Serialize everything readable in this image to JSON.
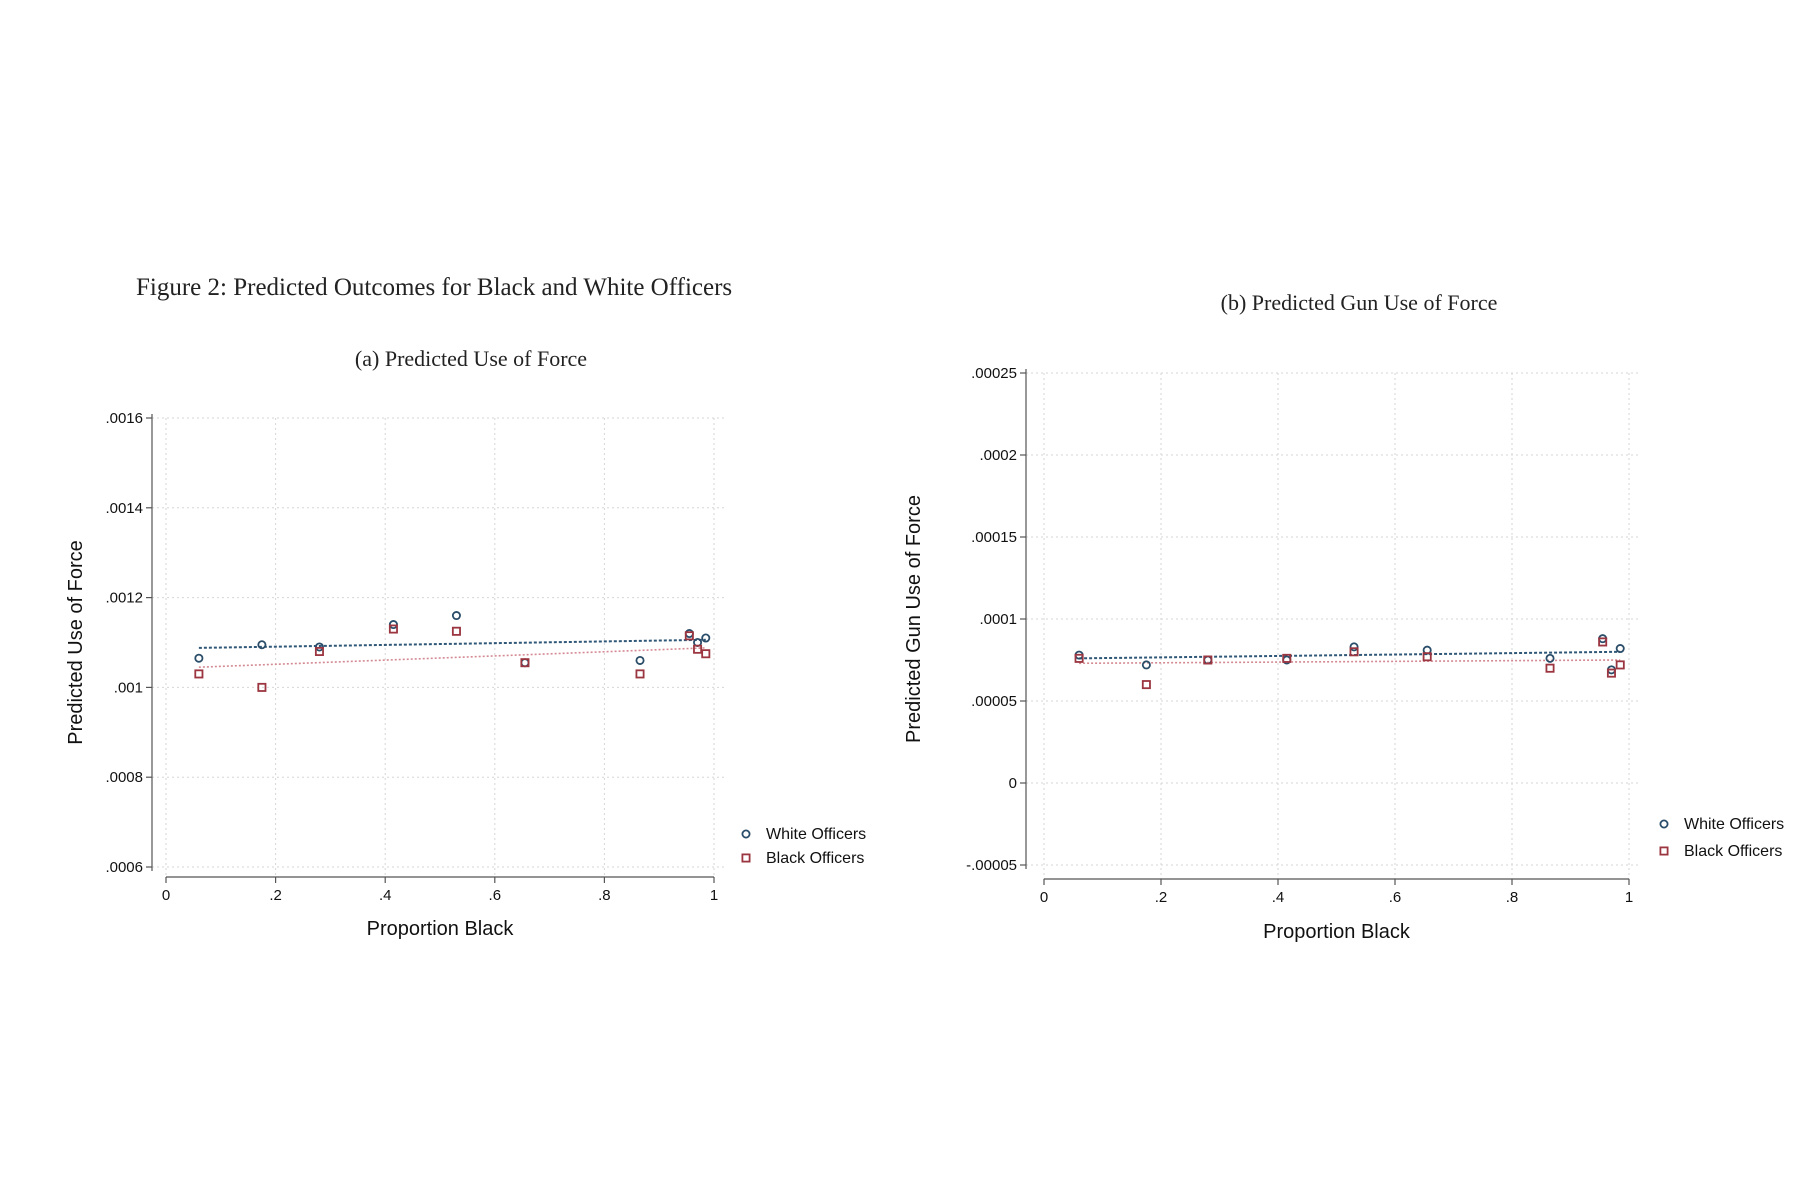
{
  "figure_title": "Figure 2: Predicted Outcomes for Black and White Officers",
  "colors": {
    "white_officers": "#2a4d69",
    "black_officers": "#9b3540",
    "white_fit": "#2f5777",
    "black_fit": "#d48a93",
    "grid": "#d6d6d6",
    "axis": "#555555"
  },
  "chart_data": [
    {
      "type": "scatter",
      "title": "(a) Predicted Use of Force",
      "xlabel": "Proportion Black",
      "ylabel": "Predicted Use of Force",
      "xlim": [
        0,
        1
      ],
      "ylim": [
        0.0006,
        0.0016
      ],
      "x_ticks": [
        0,
        0.2,
        0.4,
        0.6,
        0.8,
        1
      ],
      "x_tick_labels": [
        "0",
        ".2",
        ".4",
        ".6",
        ".8",
        "1"
      ],
      "y_ticks": [
        0.0006,
        0.0008,
        0.001,
        0.0012,
        0.0014,
        0.0016
      ],
      "y_tick_labels": [
        ".0006",
        ".0008",
        ".001",
        ".0012",
        ".0014",
        ".0016"
      ],
      "grid": true,
      "legend_position": "right",
      "series": [
        {
          "name": "White Officers",
          "marker": "circle",
          "x": [
            0.06,
            0.175,
            0.28,
            0.415,
            0.53,
            0.655,
            0.865,
            0.955,
            0.97,
            0.985
          ],
          "y": [
            0.001065,
            0.001095,
            0.00109,
            0.00114,
            0.00116,
            0.001055,
            0.00106,
            0.00112,
            0.0011,
            0.00111
          ],
          "fit": [
            0.001088,
            0.001106
          ]
        },
        {
          "name": "Black Officers",
          "marker": "square",
          "x": [
            0.06,
            0.175,
            0.28,
            0.415,
            0.53,
            0.655,
            0.865,
            0.955,
            0.97,
            0.985
          ],
          "y": [
            0.00103,
            0.001,
            0.00108,
            0.00113,
            0.001125,
            0.001055,
            0.00103,
            0.001115,
            0.001085,
            0.001075
          ],
          "fit": [
            0.001045,
            0.001088
          ]
        }
      ]
    },
    {
      "type": "scatter",
      "title": "(b) Predicted Gun Use of Force",
      "xlabel": "Proportion Black",
      "ylabel": "Predicted Gun Use of Force",
      "xlim": [
        0,
        1
      ],
      "ylim": [
        -5e-05,
        0.00025
      ],
      "x_ticks": [
        0,
        0.2,
        0.4,
        0.6,
        0.8,
        1
      ],
      "x_tick_labels": [
        "0",
        ".2",
        ".4",
        ".6",
        ".8",
        "1"
      ],
      "y_ticks": [
        -5e-05,
        0,
        5e-05,
        0.0001,
        0.00015,
        0.0002,
        0.00025
      ],
      "y_tick_labels": [
        "-.00005",
        "0",
        ".00005",
        ".0001",
        ".00015",
        ".0002",
        ".00025"
      ],
      "grid": true,
      "legend_position": "right",
      "series": [
        {
          "name": "White Officers",
          "marker": "circle",
          "x": [
            0.06,
            0.175,
            0.28,
            0.415,
            0.53,
            0.655,
            0.865,
            0.955,
            0.97,
            0.985
          ],
          "y": [
            7.8e-05,
            7.2e-05,
            7.5e-05,
            7.5e-05,
            8.3e-05,
            8.1e-05,
            7.6e-05,
            8.8e-05,
            6.9e-05,
            8.2e-05
          ],
          "fit": [
            7.6e-05,
            8e-05
          ]
        },
        {
          "name": "Black Officers",
          "marker": "square",
          "x": [
            0.06,
            0.175,
            0.28,
            0.415,
            0.53,
            0.655,
            0.865,
            0.955,
            0.97,
            0.985
          ],
          "y": [
            7.6e-05,
            6e-05,
            7.5e-05,
            7.6e-05,
            8e-05,
            7.7e-05,
            7e-05,
            8.6e-05,
            6.7e-05,
            7.2e-05
          ],
          "fit": [
            7.3e-05,
            7.5e-05
          ]
        }
      ]
    }
  ]
}
